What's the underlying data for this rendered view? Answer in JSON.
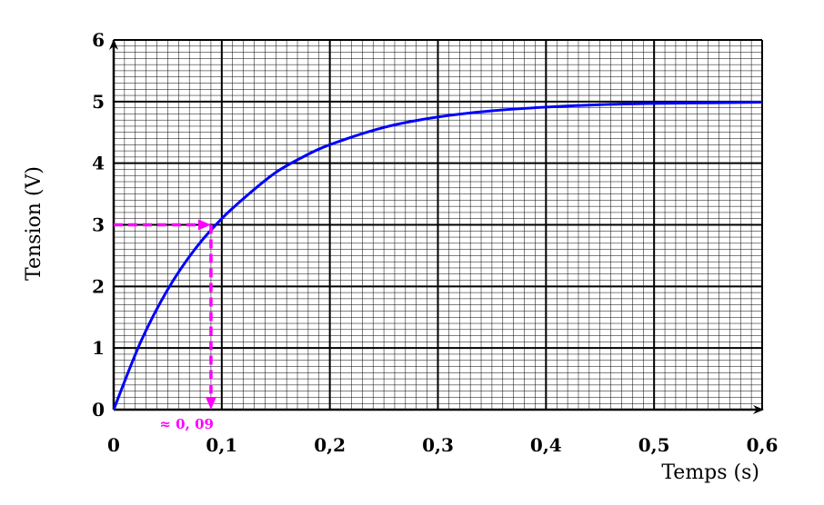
{
  "chart_data": {
    "type": "line",
    "title": "",
    "xlabel": "Temps (s)",
    "ylabel": "Tension (V)",
    "xlim": [
      0,
      0.6
    ],
    "ylim": [
      0,
      6
    ],
    "x_ticks": [
      0,
      0.1,
      0.2,
      0.3,
      0.4,
      0.5,
      0.6
    ],
    "x_tick_labels": [
      "0",
      "0,1",
      "0,2",
      "0,3",
      "0,4",
      "0,5",
      "0,6"
    ],
    "y_ticks": [
      0,
      1,
      2,
      3,
      4,
      5,
      6
    ],
    "y_tick_labels": [
      "0",
      "1",
      "2",
      "3",
      "4",
      "5",
      "6"
    ],
    "grid": {
      "major": true,
      "minor": true,
      "minor_per_major": 10
    },
    "series": [
      {
        "color": "#0000ff",
        "x": [
          0,
          0.025,
          0.05,
          0.075,
          0.1,
          0.125,
          0.15,
          0.175,
          0.2,
          0.25,
          0.3,
          0.35,
          0.4,
          0.45,
          0.5,
          0.55,
          0.6
        ],
        "values": [
          0,
          1.1,
          1.95,
          2.6,
          3.1,
          3.5,
          3.85,
          4.1,
          4.3,
          4.58,
          4.75,
          4.85,
          4.91,
          4.95,
          4.97,
          4.98,
          4.99
        ]
      }
    ],
    "annotation": {
      "color": "#ff00ff",
      "x": 0.09,
      "y": 3,
      "label": "≈ 0, 09"
    }
  }
}
